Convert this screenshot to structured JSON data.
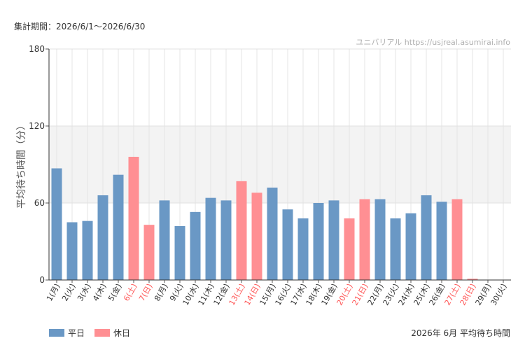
{
  "header": {
    "period": "集計期間：2026/6/1～2026/6/30",
    "source": "ユニバリアル https://usjreal.asumirai.info"
  },
  "legend": {
    "weekday_label": "平日",
    "holiday_label": "休日"
  },
  "caption": "2026年 6月 平均待ち時間",
  "colors": {
    "weekday": "#6a98c5",
    "holiday": "#ff8f93",
    "holiday_text": "#ff5555",
    "band": "#f3f3f3"
  },
  "chart_data": {
    "type": "bar",
    "ylabel": "平均待ち時間（分）",
    "ylim": [
      0,
      180
    ],
    "yticks": [
      0,
      60,
      120,
      180
    ],
    "shaded_band": [
      60,
      120
    ],
    "categories": [
      "1(月)",
      "2(火)",
      "3(水)",
      "4(木)",
      "5(金)",
      "6(土)",
      "7(日)",
      "8(月)",
      "9(火)",
      "10(水)",
      "11(木)",
      "12(金)",
      "13(土)",
      "14(日)",
      "15(月)",
      "16(火)",
      "17(水)",
      "18(木)",
      "19(金)",
      "20(土)",
      "21(日)",
      "22(月)",
      "23(火)",
      "24(水)",
      "25(木)",
      "26(金)",
      "27(土)",
      "28(日)",
      "29(月)",
      "30(火)"
    ],
    "day_type": [
      "平日",
      "平日",
      "平日",
      "平日",
      "平日",
      "休日",
      "休日",
      "平日",
      "平日",
      "平日",
      "平日",
      "平日",
      "休日",
      "休日",
      "平日",
      "平日",
      "平日",
      "平日",
      "平日",
      "休日",
      "休日",
      "平日",
      "平日",
      "平日",
      "平日",
      "平日",
      "休日",
      "休日",
      "平日",
      "平日"
    ],
    "values": [
      87,
      45,
      46,
      66,
      82,
      96,
      43,
      62,
      42,
      53,
      64,
      62,
      77,
      68,
      72,
      55,
      48,
      60,
      62,
      48,
      63,
      63,
      48,
      52,
      66,
      61,
      63,
      1,
      0,
      0
    ],
    "grid": true
  }
}
